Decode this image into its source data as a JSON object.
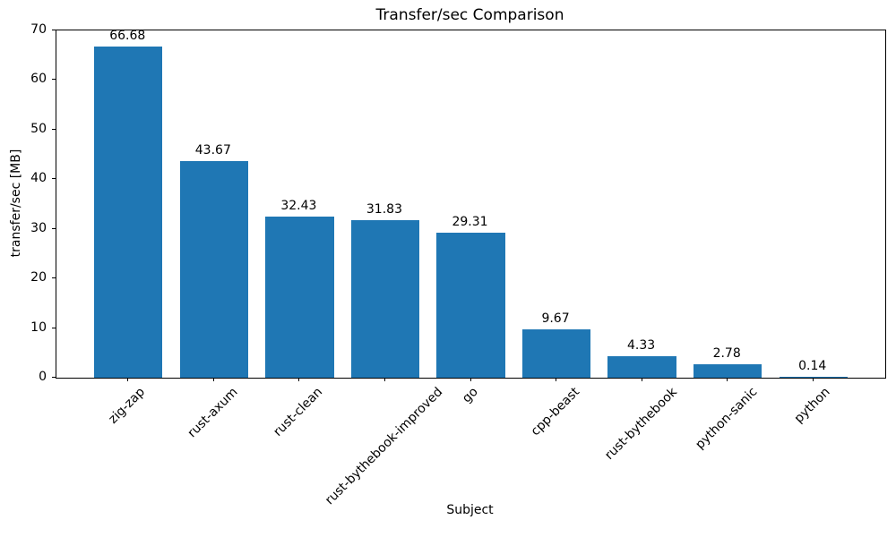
{
  "chart_data": {
    "type": "bar",
    "title": "Transfer/sec Comparison",
    "xlabel": "Subject",
    "ylabel": "transfer/sec [MB]",
    "categories": [
      "zig-zap",
      "rust-axum",
      "rust-clean",
      "rust-bythebook-improved",
      "go",
      "cpp-beast",
      "rust-bythebook",
      "python-sanic",
      "python"
    ],
    "values": [
      66.68,
      43.67,
      32.43,
      31.83,
      29.31,
      9.67,
      4.33,
      2.78,
      0.14
    ],
    "value_labels": [
      "66.68",
      "43.67",
      "32.43",
      "31.83",
      "29.31",
      "9.67",
      "4.33",
      "2.78",
      "0.14"
    ],
    "ylim": [
      0,
      70
    ],
    "yticks": [
      0,
      10,
      20,
      30,
      40,
      50,
      60,
      70
    ],
    "bar_color": "#1f77b4",
    "spine_color": "#000000",
    "text_color": "#000000",
    "grid": false,
    "legend": "none",
    "x_tick_rotation_deg": 45
  }
}
